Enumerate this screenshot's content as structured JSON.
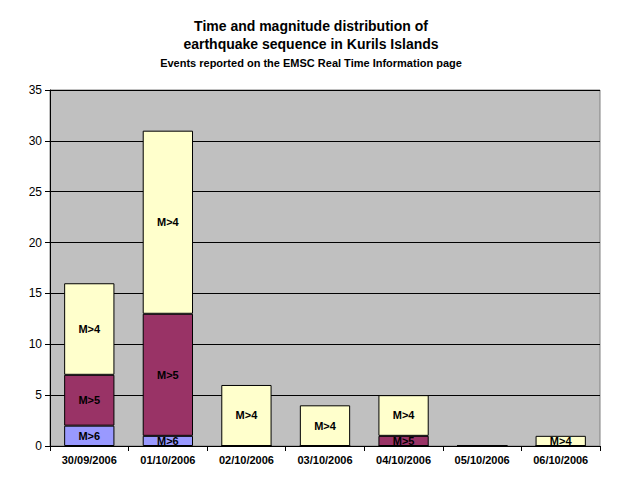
{
  "chart_data": {
    "type": "bar",
    "title": "Time and magnitude distribution of\nearthquake sequence in Kurils Islands",
    "subtitle": "Events reported on the EMSC Real Time Information page",
    "categories": [
      "30/09/2006",
      "01/10/2006",
      "02/10/2006",
      "03/10/2006",
      "04/10/2006",
      "05/10/2006",
      "06/10/2006"
    ],
    "series": [
      {
        "name": "M>6",
        "color": "#9999ff",
        "values": [
          2,
          1,
          0,
          0,
          0,
          0,
          0
        ]
      },
      {
        "name": "M>5",
        "color": "#993366",
        "values": [
          5,
          12,
          0,
          0,
          1,
          0,
          0
        ]
      },
      {
        "name": "M>4",
        "color": "#ffffcc",
        "values": [
          9,
          18,
          6,
          4,
          4,
          0,
          1
        ]
      }
    ],
    "stacked": true,
    "ylim": [
      0,
      35
    ],
    "yticks": [
      0,
      5,
      10,
      15,
      20,
      25,
      30,
      35
    ],
    "grid": true
  }
}
